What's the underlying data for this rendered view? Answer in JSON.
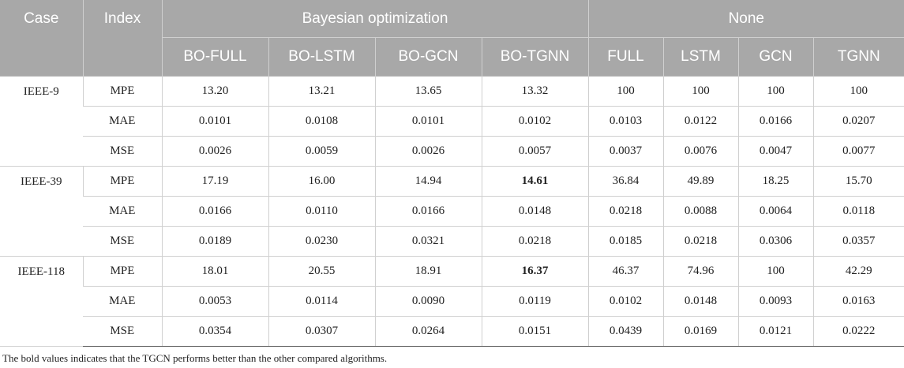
{
  "header": {
    "case": "Case",
    "index": "Index",
    "group_bo": "Bayesian optimization",
    "group_none": "None",
    "columns": [
      "BO-FULL",
      "BO-LSTM",
      "BO-GCN",
      "BO-TGNN",
      "FULL",
      "LSTM",
      "GCN",
      "TGNN"
    ]
  },
  "cases": [
    {
      "name": "IEEE-9",
      "rows": [
        {
          "index": "MPE",
          "values": [
            "13.20",
            "13.21",
            "13.65",
            "13.32",
            "100",
            "100",
            "100",
            "100"
          ]
        },
        {
          "index": "MAE",
          "values": [
            "0.0101",
            "0.0108",
            "0.0101",
            "0.0102",
            "0.0103",
            "0.0122",
            "0.0166",
            "0.0207"
          ]
        },
        {
          "index": "MSE",
          "values": [
            "0.0026",
            "0.0059",
            "0.0026",
            "0.0057",
            "0.0037",
            "0.0076",
            "0.0047",
            "0.0077"
          ]
        }
      ]
    },
    {
      "name": "IEEE-39",
      "rows": [
        {
          "index": "MPE",
          "values": [
            "17.19",
            "16.00",
            "14.94",
            "14.61",
            "36.84",
            "49.89",
            "18.25",
            "15.70"
          ]
        },
        {
          "index": "MAE",
          "values": [
            "0.0166",
            "0.0110",
            "0.0166",
            "0.0148",
            "0.0218",
            "0.0088",
            "0.0064",
            "0.0118"
          ]
        },
        {
          "index": "MSE",
          "values": [
            "0.0189",
            "0.0230",
            "0.0321",
            "0.0218",
            "0.0185",
            "0.0218",
            "0.0306",
            "0.0357"
          ]
        }
      ]
    },
    {
      "name": "IEEE-118",
      "rows": [
        {
          "index": "MPE",
          "values": [
            "18.01",
            "20.55",
            "18.91",
            "16.37",
            "46.37",
            "74.96",
            "100",
            "42.29"
          ]
        },
        {
          "index": "MAE",
          "values": [
            "0.0053",
            "0.0114",
            "0.0090",
            "0.0119",
            "0.0102",
            "0.0148",
            "0.0093",
            "0.0163"
          ]
        },
        {
          "index": "MSE",
          "values": [
            "0.0354",
            "0.0307",
            "0.0264",
            "0.0151",
            "0.0439",
            "0.0169",
            "0.0121",
            "0.0222"
          ]
        }
      ]
    }
  ],
  "footnote": "The bold values indicates that the TGCN performs better than the other compared algorithms."
}
